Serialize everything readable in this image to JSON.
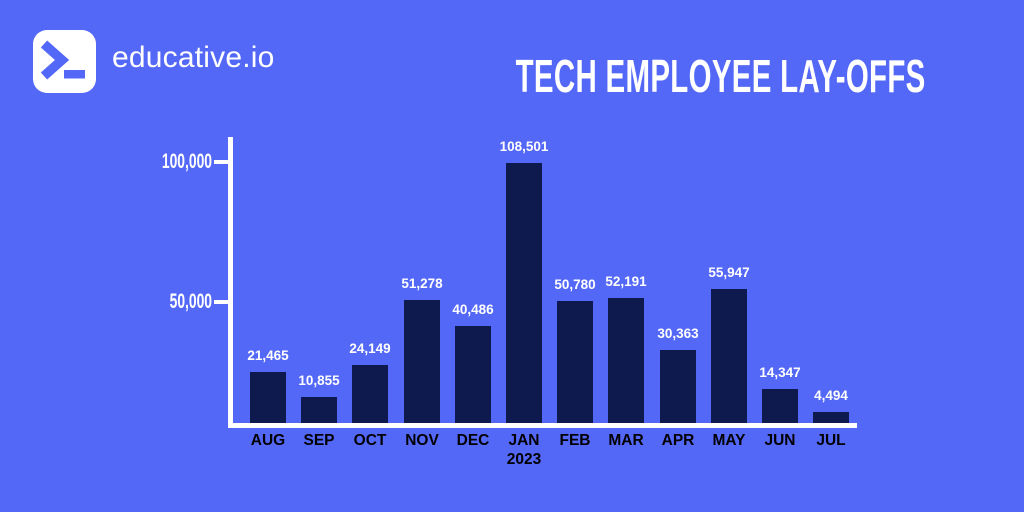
{
  "brand": {
    "name": "educative.io",
    "logo_icon": "terminal-prompt-icon"
  },
  "colors": {
    "background": "#5468f8",
    "bar": "#0e1a4e",
    "axis": "#ffffff",
    "month_label": "#000000",
    "value_label": "#ffffff",
    "brand_text": "#ffffff",
    "logo_background": "#ffffff",
    "logo_glyph": "#5468f8"
  },
  "chart_data": {
    "type": "bar",
    "title": "TECH EMPLOYEE LAY-OFFS",
    "categories": [
      "AUG",
      "SEP",
      "OCT",
      "NOV",
      "DEC",
      "JAN",
      "FEB",
      "MAR",
      "APR",
      "MAY",
      "JUN",
      "JUL"
    ],
    "x_sublabels": [
      "",
      "",
      "",
      "",
      "",
      "2023",
      "",
      "",
      "",
      "",
      "",
      ""
    ],
    "values": [
      21465,
      10855,
      24149,
      51278,
      40486,
      108501,
      50780,
      52191,
      30363,
      55947,
      14347,
      4494
    ],
    "value_labels": [
      "21,465",
      "10,855",
      "24,149",
      "51,278",
      "40,486",
      "108,501",
      "50,780",
      "52,191",
      "30,363",
      "55,947",
      "14,347",
      "4,494"
    ],
    "xlabel": "",
    "ylabel": "",
    "y_ticks": [
      50000,
      100000
    ],
    "y_tick_labels": [
      "50,000",
      "100,000"
    ],
    "ylim": [
      0,
      119000
    ],
    "grid": false,
    "legend": false,
    "bar_color": "#0e1a4e"
  }
}
